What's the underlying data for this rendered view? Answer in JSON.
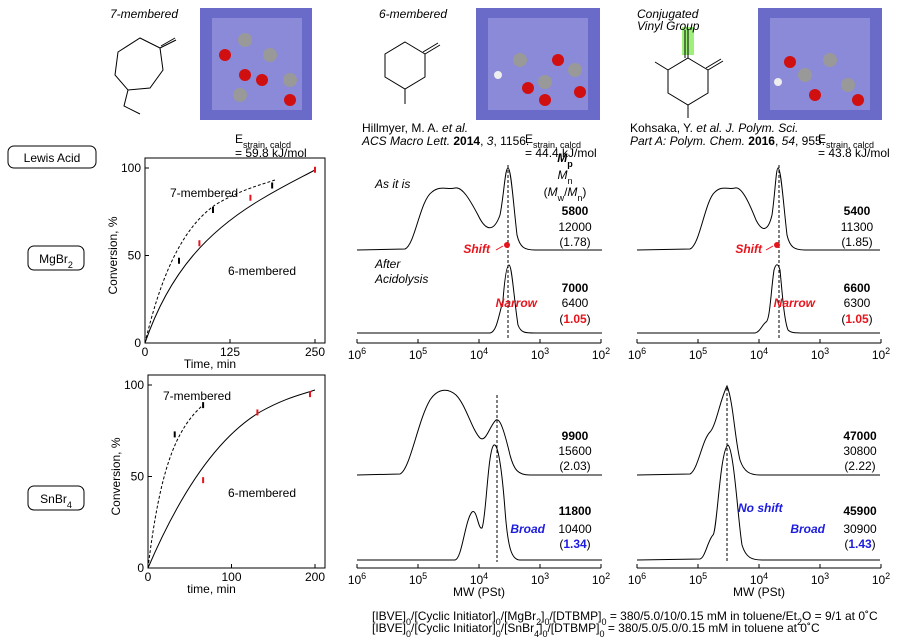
{
  "monomers": [
    {
      "label": [
        "7-membered"
      ],
      "energy": [
        {
          "text": "E"
        },
        {
          "text": "strain, calcd",
          "style": "sub"
        }
      ],
      "energy_value": "= 59.8 kJ/mol"
    },
    {
      "label": [
        "6-membered"
      ],
      "citation": [
        [
          {
            "text": "Hillmyer, M. A. "
          },
          {
            "text": "et al.",
            "style": "italic"
          }
        ],
        [
          {
            "text": "ACS Macro Lett. ",
            "style": "italic"
          },
          {
            "text": "2014",
            "style": "bold"
          },
          {
            "text": ", "
          },
          {
            "text": "3",
            "style": "italic"
          },
          {
            "text": ", 1156."
          }
        ]
      ],
      "energy": [
        {
          "text": "E"
        },
        {
          "text": "strain, calcd",
          "style": "sub"
        }
      ],
      "energy_value": "= 44.4 kJ/mol"
    },
    {
      "label": [
        "Conjugated",
        "Vinyl Group"
      ],
      "citation": [
        [
          {
            "text": "Kohsaka, Y. "
          },
          {
            "text": "et al.",
            "style": "italic"
          },
          {
            "text": " J. Polym. Sci.",
            "style": "italic"
          }
        ],
        [
          {
            "text": "Part A: Polym. Chem. ",
            "style": "italic"
          },
          {
            "text": "2016",
            "style": "bold"
          },
          {
            "text": ", "
          },
          {
            "text": "54",
            "style": "italic"
          },
          {
            "text": ", 955."
          }
        ]
      ],
      "energy": [
        {
          "text": "E"
        },
        {
          "text": "strain, calcd",
          "style": "sub"
        }
      ],
      "energy_value": "= 43.8 kJ/mol"
    }
  ],
  "row_labels": {
    "lewis_acid": [
      {
        "text": "Lewis Acid"
      }
    ],
    "mgbr2": [
      {
        "text": "MgBr"
      },
      {
        "text": "2",
        "style": "sub"
      }
    ],
    "snbr4": [
      {
        "text": "SnBr"
      },
      {
        "text": "4",
        "style": "sub"
      }
    ]
  },
  "kinetics": [
    {
      "x_label": "Time, min",
      "y_label": "Conversion, %",
      "xlim": [
        0,
        250
      ],
      "xticks": [
        0,
        125,
        250
      ],
      "ylim": [
        0,
        100
      ],
      "yticks": [
        0,
        50,
        100
      ],
      "series": [
        {
          "name": "7-membered",
          "color": "#000000",
          "time": [
            50,
            100,
            187
          ],
          "conversion": [
            47,
            76,
            90
          ]
        },
        {
          "name": "6-membered",
          "color": "#e8141c",
          "time": [
            80,
            155,
            250
          ],
          "conversion": [
            57,
            83,
            99
          ]
        }
      ]
    },
    {
      "x_label": "time, min",
      "y_label": "Conversion, %",
      "xlim": [
        0,
        200
      ],
      "xticks": [
        0,
        100,
        200
      ],
      "ylim": [
        0,
        100
      ],
      "yticks": [
        0,
        50,
        100
      ],
      "series": [
        {
          "name": "7-membered",
          "color": "#000000",
          "time": [
            32,
            66
          ],
          "conversion": [
            73,
            89
          ]
        },
        {
          "name": "6-membered",
          "color": "#e8141c",
          "time": [
            66,
            131,
            194
          ],
          "conversion": [
            48,
            85,
            95
          ]
        }
      ]
    }
  ],
  "gpc": {
    "x_label": "MW (PSt)",
    "ticks": [
      [
        {
          "text": "10"
        },
        {
          "text": "6",
          "style": "sup"
        }
      ],
      [
        {
          "text": "10"
        },
        {
          "text": "5",
          "style": "sup"
        }
      ],
      [
        {
          "text": "10"
        },
        {
          "text": "4",
          "style": "sup"
        }
      ],
      [
        {
          "text": "10"
        },
        {
          "text": "3",
          "style": "sup"
        }
      ],
      [
        {
          "text": "10"
        },
        {
          "text": "2",
          "style": "sup"
        }
      ]
    ],
    "legend": [
      [
        {
          "text": "M",
          "style": "bold italic"
        },
        {
          "text": "p",
          "style": "bold sub"
        }
      ],
      [
        {
          "text": "M",
          "style": "italic"
        },
        {
          "text": "n",
          "style": "sub"
        }
      ],
      [
        {
          "text": "("
        },
        {
          "text": "M",
          "style": "italic"
        },
        {
          "text": "w",
          "style": "sub"
        },
        {
          "text": "/"
        },
        {
          "text": "M",
          "style": "italic"
        },
        {
          "text": "n",
          "style": "sub"
        },
        {
          "text": ")"
        }
      ]
    ],
    "panels": [
      {
        "traces": [
          {
            "label": [
              [
                {
                  "text": "As it is",
                  "style": "italic"
                }
              ]
            ],
            "mp": "5800",
            "mn": "12000",
            "dispersity": [
              {
                "text": "(1.78)"
              }
            ]
          },
          {
            "label": [
              [
                {
                  "text": "After",
                  "style": "italic"
                }
              ],
              [
                {
                  "text": "Acidolysis",
                  "style": "italic"
                }
              ]
            ],
            "mp": "7000",
            "mn": "6400",
            "dispersity": [
              {
                "text": "("
              },
              {
                "text": "1.05",
                "style": "red bold"
              },
              {
                "text": ")"
              }
            ]
          }
        ],
        "notes": [
          [
            {
              "text": "Shift",
              "style": "red bold italic"
            }
          ],
          [
            {
              "text": "Narrow",
              "style": "red bold italic"
            }
          ]
        ]
      },
      {
        "traces": [
          {
            "mp": "5400",
            "mn": "11300",
            "dispersity": [
              {
                "text": "(1.85)"
              }
            ]
          },
          {
            "mp": "6600",
            "mn": "6300",
            "dispersity": [
              {
                "text": "("
              },
              {
                "text": "1.05",
                "style": "red bold"
              },
              {
                "text": ")"
              }
            ]
          }
        ],
        "notes": [
          [
            {
              "text": "Shift",
              "style": "red bold italic"
            }
          ],
          [
            {
              "text": "Narrow",
              "style": "red bold italic"
            }
          ]
        ]
      },
      {
        "traces": [
          {
            "mp": "9900",
            "mn": "15600",
            "dispersity": [
              {
                "text": "(2.03)"
              }
            ]
          },
          {
            "mp": "11800",
            "mn": "10400",
            "dispersity": [
              {
                "text": "("
              },
              {
                "text": "1.34",
                "style": "blue bold"
              },
              {
                "text": ")"
              }
            ]
          }
        ],
        "notes": [
          [
            {
              "text": "Broad",
              "style": "blue bold italic"
            }
          ]
        ]
      },
      {
        "traces": [
          {
            "mp": "47000",
            "mn": "30800",
            "dispersity": [
              {
                "text": "(2.22)"
              }
            ]
          },
          {
            "mp": "45900",
            "mn": "30900",
            "dispersity": [
              {
                "text": "("
              },
              {
                "text": "1.43",
                "style": "blue bold"
              },
              {
                "text": ")"
              }
            ]
          }
        ],
        "notes": [
          [
            {
              "text": "No shift",
              "style": "blue bold italic"
            }
          ],
          [
            {
              "text": "Broad",
              "style": "blue bold italic"
            }
          ]
        ]
      }
    ]
  },
  "footer": [
    [
      {
        "text": "[IBVE]"
      },
      {
        "text": "0",
        "style": "sub"
      },
      {
        "text": "/[Cyclic Initiator]"
      },
      {
        "text": "0",
        "style": "sub"
      },
      {
        "text": "/[MgBr"
      },
      {
        "text": "2",
        "style": "sub"
      },
      {
        "text": "]"
      },
      {
        "text": "0",
        "style": "sub"
      },
      {
        "text": "/[DTBMP]"
      },
      {
        "text": "0",
        "style": "sub"
      },
      {
        "text": " = 380/5.0/10/0.15 mM in toluene/Et"
      },
      {
        "text": "2",
        "style": "sub"
      },
      {
        "text": "O = 9/1 at 0˚C"
      }
    ],
    [
      {
        "text": "[IBVE]"
      },
      {
        "text": "0",
        "style": "sub"
      },
      {
        "text": "/[Cyclic Initiator]"
      },
      {
        "text": "0",
        "style": "sub"
      },
      {
        "text": "/[SnBr"
      },
      {
        "text": "4",
        "style": "sub"
      },
      {
        "text": "]"
      },
      {
        "text": "0",
        "style": "sub"
      },
      {
        "text": "/[DTBMP]"
      },
      {
        "text": "0",
        "style": "sub"
      },
      {
        "text": " = 380/5.0/5.0/0.15 mM in toluene at 0˚C"
      }
    ]
  ]
}
